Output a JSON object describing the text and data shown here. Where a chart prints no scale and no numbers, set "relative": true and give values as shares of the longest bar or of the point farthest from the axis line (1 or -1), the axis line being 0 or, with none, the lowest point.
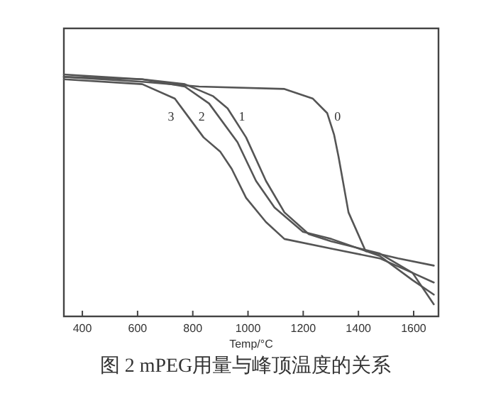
{
  "chart_data": {
    "type": "line",
    "relative": true,
    "xlabel": "Temp/°C",
    "annotations": [
      "图 2 mPEG用量与峰顶温度的关系"
    ],
    "xlim": [
      333,
      1690
    ],
    "xticks": [
      400,
      600,
      800,
      1000,
      1200,
      1400,
      1600
    ],
    "grid": false,
    "marker": "none",
    "line_style": "solid",
    "series": [
      {
        "name": "0",
        "color": "#555555",
        "x": [
          333,
          617,
          823,
          1132,
          1235,
          1287,
          1312,
          1328,
          1364,
          1426,
          1467,
          1544,
          1673
        ],
        "values": [
          0.99,
          0.97,
          0.95,
          0.94,
          0.9,
          0.84,
          0.75,
          0.66,
          0.43,
          0.27,
          0.26,
          0.24,
          0.21
        ]
      },
      {
        "name": "1",
        "color": "#555555",
        "x": [
          333,
          617,
          771,
          874,
          926,
          993,
          1065,
          1132,
          1220,
          1302,
          1477,
          1596,
          1673
        ],
        "values": [
          1.0,
          0.98,
          0.96,
          0.91,
          0.86,
          0.74,
          0.56,
          0.43,
          0.34,
          0.31,
          0.26,
          0.18,
          0.05
        ]
      },
      {
        "name": "2",
        "color": "#555555",
        "x": [
          333,
          617,
          771,
          859,
          962,
          1029,
          1096,
          1199,
          1302,
          1477,
          1596,
          1673
        ],
        "values": [
          0.99,
          0.98,
          0.95,
          0.88,
          0.72,
          0.56,
          0.45,
          0.35,
          0.32,
          0.25,
          0.15,
          0.09
        ]
      },
      {
        "name": "3",
        "color": "#555555",
        "x": [
          333,
          617,
          735,
          839,
          900,
          941,
          993,
          1065,
          1132,
          1302,
          1477,
          1596,
          1673
        ],
        "values": [
          0.98,
          0.96,
          0.9,
          0.74,
          0.68,
          0.61,
          0.49,
          0.39,
          0.32,
          0.28,
          0.24,
          0.18,
          0.14
        ]
      }
    ]
  }
}
